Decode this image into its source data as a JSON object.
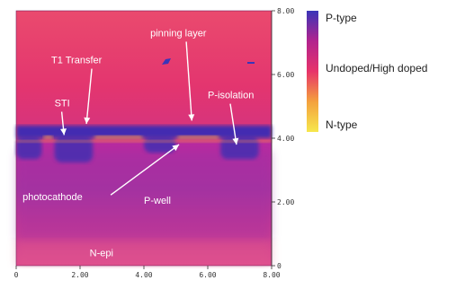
{
  "chart_data": {
    "type": "heatmap",
    "x_axis": {
      "range": [
        0,
        8
      ],
      "tick_labels": [
        "0",
        "2.00",
        "4.00",
        "6.00",
        "8.00"
      ]
    },
    "y_axis": {
      "range": [
        0,
        8
      ],
      "position": "right",
      "tick_labels": [
        "0",
        "2.00",
        "4.00",
        "6.00",
        "8.00"
      ]
    },
    "colorbar": {
      "position": "right",
      "stops": [
        "#3a35b8",
        "#b2238e",
        "#e7336a",
        "#f4a13d",
        "#f6e74d"
      ],
      "labels": {
        "top": "P-type",
        "middle": "Undoped/High doped",
        "bottom": "N-type"
      }
    },
    "regions": {
      "n_epi": "N-epi",
      "p_well": "P-well",
      "photocathode": "photocathode",
      "sti": "STI",
      "transfer": "T1 Transfer",
      "pinning_layer": "pinning layer",
      "p_isolation": "P-isolation"
    },
    "annotations": [
      {
        "key": "sti",
        "text": "STI",
        "x": 1.2,
        "y": 5.0,
        "arrow_to": [
          1.5,
          4.1
        ],
        "color": "#ffffff"
      },
      {
        "key": "transfer",
        "text": "T1 Transfer",
        "x": 1.1,
        "y": 6.35,
        "arrow_to": [
          2.2,
          4.45
        ],
        "color": "#ffffff"
      },
      {
        "key": "pinning_layer",
        "text": "pinning layer",
        "x": 4.2,
        "y": 7.2,
        "arrow_to": [
          5.5,
          4.55
        ],
        "color": "#ffffff"
      },
      {
        "key": "p_isolation",
        "text": "P-isolation",
        "x": 6.0,
        "y": 5.25,
        "arrow_to": [
          6.9,
          3.8
        ],
        "color": "#ffffff"
      },
      {
        "key": "photocathode",
        "text": "photocathode",
        "x": 0.2,
        "y": 2.05,
        "arrow_to": [
          5.1,
          3.8
        ],
        "color": "#ffffff"
      },
      {
        "key": "p_well",
        "text": "P-well",
        "x": 4.0,
        "y": 1.95,
        "color": "#ffffff"
      },
      {
        "key": "n_epi",
        "text": "N-epi",
        "x": 2.3,
        "y": 0.3,
        "color": "#ffffff"
      }
    ],
    "structure": {
      "oxide_band_y": [
        4.0,
        4.4
      ],
      "sti_wells": [
        {
          "x": [
            0.0,
            0.8
          ],
          "depth": 3.4
        },
        {
          "x": [
            1.2,
            2.4
          ],
          "depth": 3.3
        },
        {
          "x": [
            4.0,
            5.0
          ],
          "depth": 3.6
        },
        {
          "x": [
            6.4,
            7.6
          ],
          "depth": 3.4
        }
      ],
      "p_well_y": [
        0.8,
        3.6
      ],
      "n_epi_y": [
        0.0,
        0.8
      ]
    }
  }
}
